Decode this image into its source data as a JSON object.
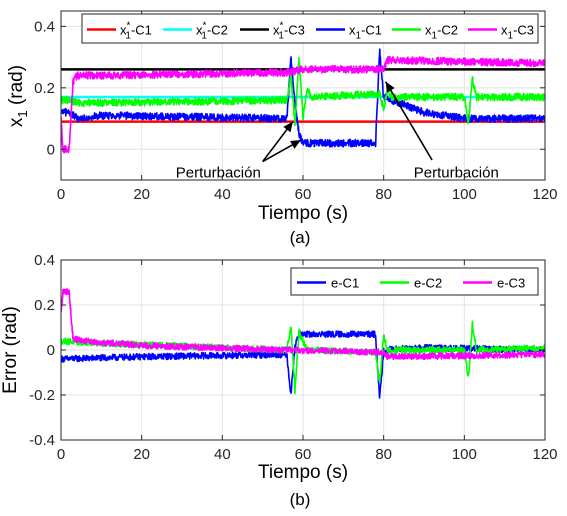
{
  "chart_data": [
    {
      "type": "line",
      "caption": "(a)",
      "xlabel": "Tiempo (s)",
      "ylabel": "x_1 (rad)",
      "xlim": [
        0,
        120
      ],
      "ylim": [
        -0.1,
        0.45
      ],
      "xticks": [
        0,
        20,
        40,
        60,
        80,
        100,
        120
      ],
      "yticks": [
        0,
        0.2,
        0.4
      ],
      "grid": true,
      "legend": {
        "position": "top",
        "columns": 6
      },
      "series": [
        {
          "name": "C1",
          "base": "x",
          "sup": "*",
          "sub": "1",
          "suffix": "-C1",
          "color": "#ff0000",
          "kind": "reference",
          "points": [
            [
              0,
              0.09
            ],
            [
              120,
              0.09
            ]
          ]
        },
        {
          "name": "C2",
          "base": "x",
          "sup": "*",
          "sub": "1",
          "suffix": "-C2",
          "color": "#00ffff",
          "kind": "reference",
          "points": [
            [
              0,
              0.17
            ],
            [
              120,
              0.17
            ]
          ]
        },
        {
          "name": "C3",
          "base": "x",
          "sup": "*",
          "sub": "1",
          "suffix": "-C3",
          "color": "#000000",
          "kind": "reference",
          "points": [
            [
              0,
              0.26
            ],
            [
              120,
              0.26
            ]
          ]
        },
        {
          "name": "C1",
          "base": "x",
          "sup": "",
          "sub": "1",
          "suffix": "-C1",
          "color": "#0000ff",
          "kind": "response",
          "noise": 0.012,
          "points": [
            [
              0,
              0.12
            ],
            [
              2,
              0.12
            ],
            [
              4,
              0.1
            ],
            [
              10,
              0.11
            ],
            [
              56,
              0.1
            ],
            [
              57,
              0.3
            ],
            [
              58,
              0.15
            ],
            [
              59,
              0.05
            ],
            [
              60,
              0.02
            ],
            [
              78,
              0.02
            ],
            [
              79,
              0.32
            ],
            [
              80,
              0.17
            ],
            [
              90,
              0.12
            ],
            [
              100,
              0.1
            ],
            [
              120,
              0.1
            ]
          ]
        },
        {
          "name": "C2",
          "base": "x",
          "sup": "",
          "sub": "1",
          "suffix": "-C2",
          "color": "#00ff00",
          "kind": "response",
          "noise": 0.012,
          "points": [
            [
              0,
              0.16
            ],
            [
              2,
              0.16
            ],
            [
              4,
              0.15
            ],
            [
              56,
              0.16
            ],
            [
              57,
              0.24
            ],
            [
              58,
              0.08
            ],
            [
              59,
              0.3
            ],
            [
              60,
              0.1
            ],
            [
              61,
              0.2
            ],
            [
              62,
              0.17
            ],
            [
              79,
              0.18
            ],
            [
              80,
              0.13
            ],
            [
              81,
              0.2
            ],
            [
              82,
              0.17
            ],
            [
              100,
              0.17
            ],
            [
              101,
              0.08
            ],
            [
              102,
              0.23
            ],
            [
              103,
              0.17
            ],
            [
              120,
              0.17
            ]
          ]
        },
        {
          "name": "C3",
          "base": "x",
          "sup": "",
          "sub": "1",
          "suffix": "-C3",
          "color": "#ff00ff",
          "kind": "response",
          "noise": 0.012,
          "points": [
            [
              0,
              0.1
            ],
            [
              0.5,
              0.0
            ],
            [
              2,
              0.0
            ],
            [
              3,
              0.22
            ],
            [
              4,
              0.24
            ],
            [
              10,
              0.24
            ],
            [
              56,
              0.25
            ],
            [
              60,
              0.26
            ],
            [
              80,
              0.26
            ],
            [
              81,
              0.29
            ],
            [
              120,
              0.28
            ]
          ]
        }
      ],
      "annotations": [
        {
          "text": "Perturbación",
          "x": 39,
          "y": -0.075,
          "anchor": "middle",
          "arrows": [
            [
              57.5,
              0.09
            ],
            [
              59.5,
              0.03
            ]
          ],
          "from": [
            50,
            -0.04
          ]
        },
        {
          "text": "Perturbación",
          "x": 98,
          "y": -0.075,
          "anchor": "middle",
          "arrows": [
            [
              80.5,
              0.22
            ]
          ],
          "from": [
            92,
            -0.035
          ]
        }
      ]
    },
    {
      "type": "line",
      "caption": "(b)",
      "xlabel": "Tiempo (s)",
      "ylabel": "Error (rad)",
      "xlim": [
        0,
        120
      ],
      "ylim": [
        -0.4,
        0.4
      ],
      "xticks": [
        0,
        20,
        40,
        60,
        80,
        100,
        120
      ],
      "yticks": [
        -0.4,
        -0.2,
        0,
        0.2,
        0.4
      ],
      "grid": true,
      "legend": {
        "position": "top-right",
        "columns": 3
      },
      "series": [
        {
          "name": "e-C1",
          "color": "#0000ff",
          "noise": 0.014,
          "points": [
            [
              0,
              -0.04
            ],
            [
              20,
              -0.03
            ],
            [
              56,
              -0.02
            ],
            [
              57,
              -0.2
            ],
            [
              58,
              0.02
            ],
            [
              59,
              0.07
            ],
            [
              78,
              0.07
            ],
            [
              79,
              -0.22
            ],
            [
              80,
              0.0
            ],
            [
              90,
              0.01
            ],
            [
              120,
              0.0
            ]
          ]
        },
        {
          "name": "e-C2",
          "color": "#00ff00",
          "noise": 0.014,
          "points": [
            [
              0,
              0.04
            ],
            [
              10,
              0.03
            ],
            [
              56,
              0.0
            ],
            [
              57,
              0.11
            ],
            [
              58,
              -0.18
            ],
            [
              59,
              0.08
            ],
            [
              61,
              0.0
            ],
            [
              78,
              -0.01
            ],
            [
              79,
              -0.15
            ],
            [
              80,
              0.06
            ],
            [
              81,
              0.0
            ],
            [
              100,
              0.0
            ],
            [
              101,
              -0.13
            ],
            [
              102,
              0.12
            ],
            [
              103,
              0.0
            ],
            [
              120,
              0.01
            ]
          ]
        },
        {
          "name": "e-C3",
          "color": "#ff00ff",
          "noise": 0.014,
          "points": [
            [
              0,
              0.16
            ],
            [
              0.5,
              0.26
            ],
            [
              2,
              0.26
            ],
            [
              3,
              0.05
            ],
            [
              6,
              0.04
            ],
            [
              20,
              0.02
            ],
            [
              56,
              0.0
            ],
            [
              80,
              -0.01
            ],
            [
              81,
              -0.03
            ],
            [
              120,
              -0.02
            ]
          ]
        }
      ]
    }
  ]
}
